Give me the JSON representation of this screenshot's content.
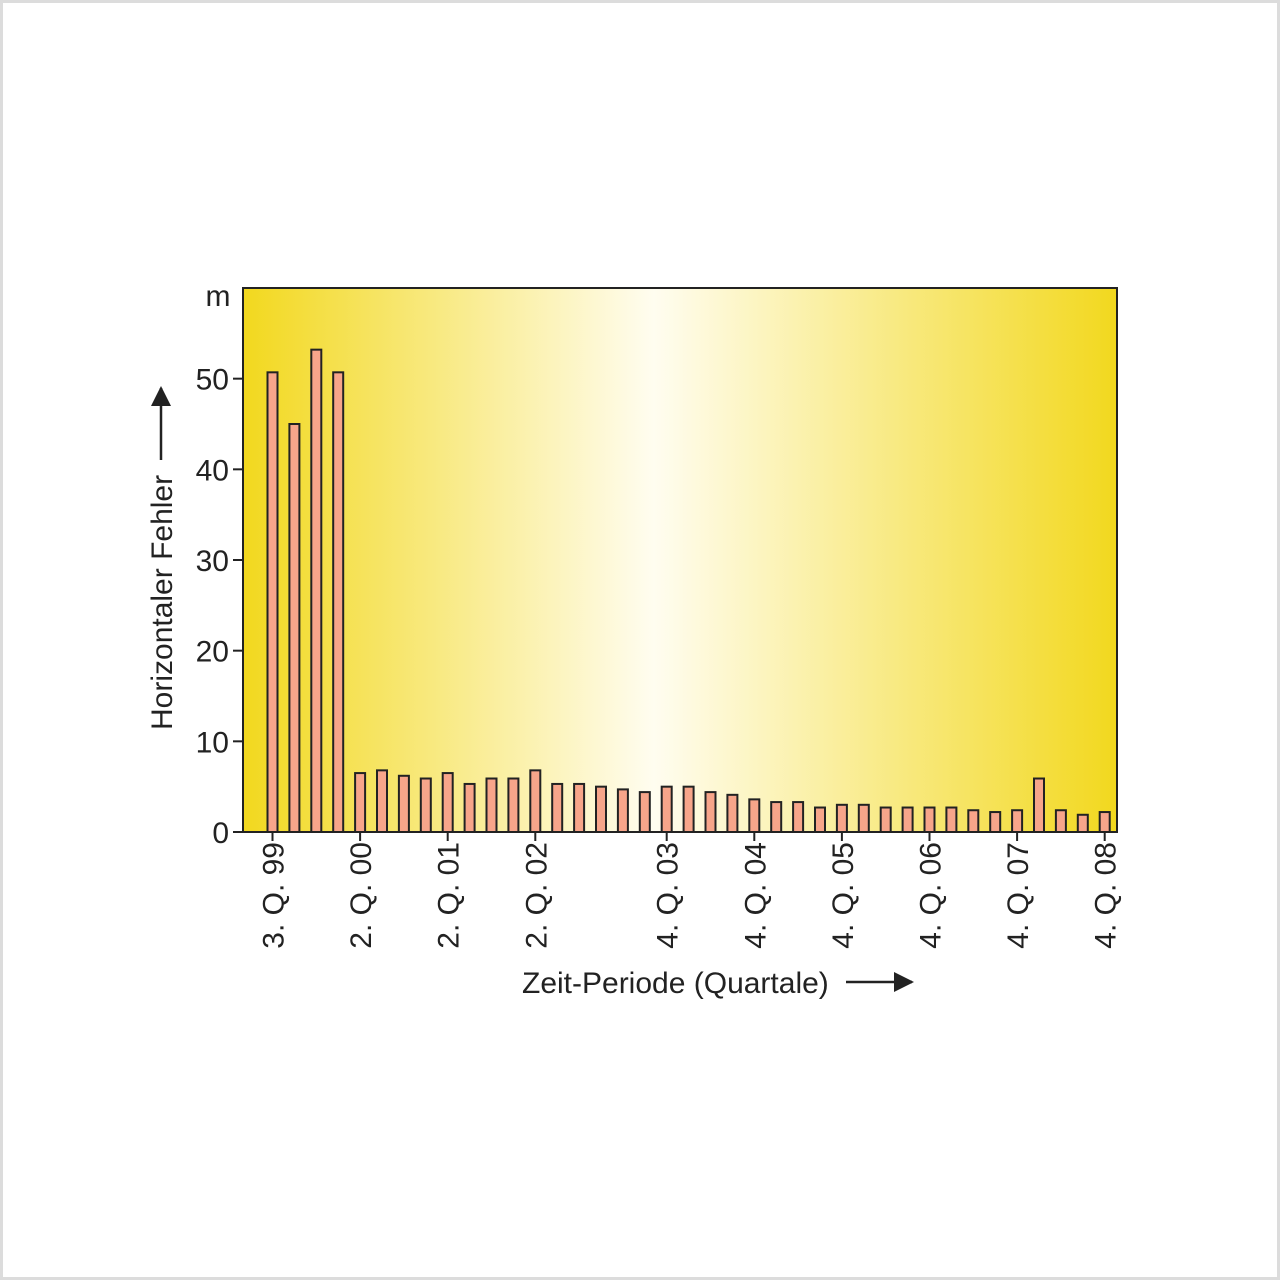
{
  "chart_data": {
    "type": "bar",
    "unit": "m",
    "ylabel": "Horizontaler Fehler",
    "xlabel": "Zeit-Periode (Quartale)",
    "ylim": [
      0,
      60
    ],
    "yticks": [
      0,
      10,
      20,
      30,
      40,
      50
    ],
    "x_tick_labels": [
      "3. Q. 99",
      "2. Q. 00",
      "2. Q. 01",
      "2. Q. 02",
      "4. Q. 03",
      "4. Q. 04",
      "4. Q. 05",
      "4. Q. 06",
      "4. Q. 07",
      "4. Q. 08"
    ],
    "x_tick_bar_index": [
      0,
      4,
      8,
      12,
      18,
      22,
      26,
      30,
      34,
      38
    ],
    "values": [
      50.7,
      45.0,
      53.2,
      50.7,
      6.5,
      6.8,
      6.2,
      5.9,
      6.5,
      5.3,
      5.9,
      5.9,
      6.8,
      5.3,
      5.3,
      5.0,
      4.7,
      4.4,
      5.0,
      5.0,
      4.4,
      4.1,
      3.6,
      3.3,
      3.3,
      2.7,
      3.0,
      3.0,
      2.7,
      2.7,
      2.7,
      2.7,
      2.4,
      2.2,
      2.4,
      5.9,
      2.4,
      1.9,
      2.2
    ],
    "grid": false,
    "colors": {
      "bar_fill": "#f7a58a",
      "bar_stroke": "#222222",
      "background_edge": "#f2d81e",
      "background_center": "#fffdf0"
    }
  }
}
